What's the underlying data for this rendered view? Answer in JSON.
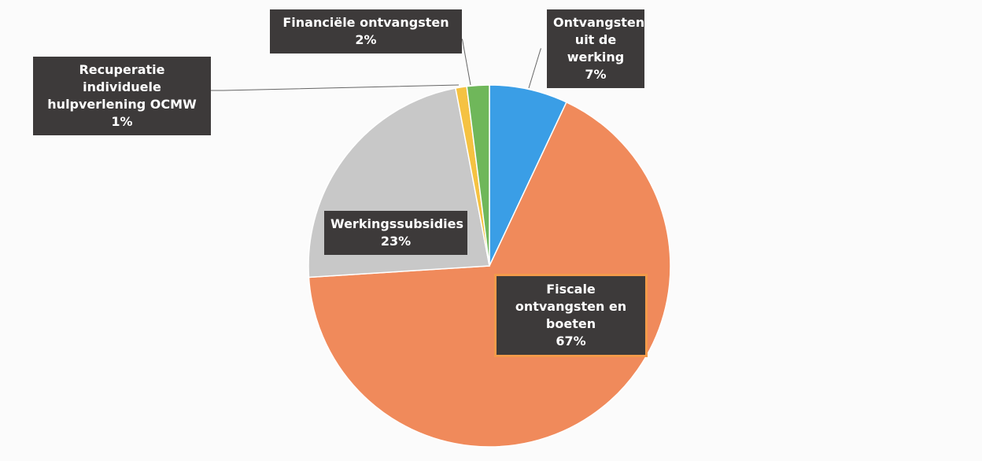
{
  "chart_data": {
    "type": "pie",
    "categories": [
      "Ontvangsten uit de werking",
      "Fiscale ontvangsten en boeten",
      "Werkingssubsidies",
      "Recuperatie individuele hulpverlening OCMW",
      "Financiële ontvangsten"
    ],
    "values": [
      7,
      67,
      23,
      1,
      2
    ],
    "value_labels": [
      "7%",
      "67%",
      "23%",
      "1%",
      "2%"
    ],
    "colors": [
      "#3a9ee6",
      "#f08a5b",
      "#c8c8c8",
      "#f5c242",
      "#6fb75a"
    ]
  }
}
